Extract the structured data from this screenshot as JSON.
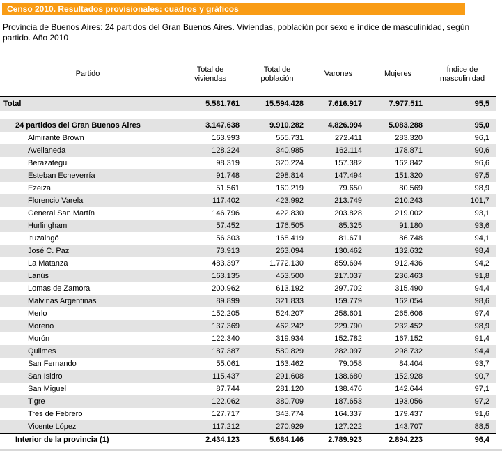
{
  "banner": {
    "title": "Censo 2010. Resultados provisionales: cuadros y gráficos",
    "bg_color": "#F99C15",
    "text_color": "#FFFFFF"
  },
  "subtitle": "Provincia de Buenos Aires: 24 partidos del Gran Buenos Aires. Viviendas, población por sexo e índice de masculinidad, según partido. Año 2010",
  "table": {
    "columns": [
      "Partido",
      "Total de viviendas",
      "Total de población",
      "Varones",
      "Mujeres",
      "Índice de masculinidad"
    ],
    "rows": [
      {
        "label": "Total",
        "level": "total",
        "values": [
          "5.581.761",
          "15.594.428",
          "7.616.917",
          "7.977.511",
          "95,5"
        ]
      },
      {
        "label": "24 partidos del Gran Buenos Aires",
        "level": "group",
        "values": [
          "3.147.638",
          "9.910.282",
          "4.826.994",
          "5.083.288",
          "95,0"
        ]
      },
      {
        "label": "Almirante Brown",
        "level": "item",
        "values": [
          "163.993",
          "555.731",
          "272.411",
          "283.320",
          "96,1"
        ]
      },
      {
        "label": "Avellaneda",
        "level": "item",
        "values": [
          "128.224",
          "340.985",
          "162.114",
          "178.871",
          "90,6"
        ]
      },
      {
        "label": "Berazategui",
        "level": "item",
        "values": [
          "98.319",
          "320.224",
          "157.382",
          "162.842",
          "96,6"
        ]
      },
      {
        "label": "Esteban Echeverría",
        "level": "item",
        "values": [
          "91.748",
          "298.814",
          "147.494",
          "151.320",
          "97,5"
        ]
      },
      {
        "label": "Ezeiza",
        "level": "item",
        "values": [
          "51.561",
          "160.219",
          "79.650",
          "80.569",
          "98,9"
        ]
      },
      {
        "label": "Florencio Varela",
        "level": "item",
        "values": [
          "117.402",
          "423.992",
          "213.749",
          "210.243",
          "101,7"
        ]
      },
      {
        "label": "General San Martín",
        "level": "item",
        "values": [
          "146.796",
          "422.830",
          "203.828",
          "219.002",
          "93,1"
        ]
      },
      {
        "label": "Hurlingham",
        "level": "item",
        "values": [
          "57.452",
          "176.505",
          "85.325",
          "91.180",
          "93,6"
        ]
      },
      {
        "label": "Ituzaingó",
        "level": "item",
        "values": [
          "56.303",
          "168.419",
          "81.671",
          "86.748",
          "94,1"
        ]
      },
      {
        "label": "José C. Paz",
        "level": "item",
        "values": [
          "73.913",
          "263.094",
          "130.462",
          "132.632",
          "98,4"
        ]
      },
      {
        "label": "La Matanza",
        "level": "item",
        "values": [
          "483.397",
          "1.772.130",
          "859.694",
          "912.436",
          "94,2"
        ]
      },
      {
        "label": "Lanús",
        "level": "item",
        "values": [
          "163.135",
          "453.500",
          "217.037",
          "236.463",
          "91,8"
        ]
      },
      {
        "label": "Lomas de Zamora",
        "level": "item",
        "values": [
          "200.962",
          "613.192",
          "297.702",
          "315.490",
          "94,4"
        ]
      },
      {
        "label": "Malvinas Argentinas",
        "level": "item",
        "values": [
          "89.899",
          "321.833",
          "159.779",
          "162.054",
          "98,6"
        ]
      },
      {
        "label": "Merlo",
        "level": "item",
        "values": [
          "152.205",
          "524.207",
          "258.601",
          "265.606",
          "97,4"
        ]
      },
      {
        "label": "Moreno",
        "level": "item",
        "values": [
          "137.369",
          "462.242",
          "229.790",
          "232.452",
          "98,9"
        ]
      },
      {
        "label": "Morón",
        "level": "item",
        "values": [
          "122.340",
          "319.934",
          "152.782",
          "167.152",
          "91,4"
        ]
      },
      {
        "label": "Quilmes",
        "level": "item",
        "values": [
          "187.387",
          "580.829",
          "282.097",
          "298.732",
          "94,4"
        ]
      },
      {
        "label": "San Fernando",
        "level": "item",
        "values": [
          "55.061",
          "163.462",
          "79.058",
          "84.404",
          "93,7"
        ]
      },
      {
        "label": "San Isidro",
        "level": "item",
        "values": [
          "115.437",
          "291.608",
          "138.680",
          "152.928",
          "90,7"
        ]
      },
      {
        "label": "San Miguel",
        "level": "item",
        "values": [
          "87.744",
          "281.120",
          "138.476",
          "142.644",
          "97,1"
        ]
      },
      {
        "label": "Tigre",
        "level": "item",
        "values": [
          "122.062",
          "380.709",
          "187.653",
          "193.056",
          "97,2"
        ]
      },
      {
        "label": "Tres de Febrero",
        "level": "item",
        "values": [
          "127.717",
          "343.774",
          "164.337",
          "179.437",
          "91,6"
        ]
      },
      {
        "label": "Vicente López",
        "level": "item",
        "values": [
          "117.212",
          "270.929",
          "127.222",
          "143.707",
          "88,5"
        ]
      },
      {
        "label": "Interior de la provincia (1)",
        "level": "interior",
        "values": [
          "2.434.123",
          "5.684.146",
          "2.789.923",
          "2.894.223",
          "96,4"
        ]
      }
    ],
    "zebra_gray": "#E3E3E3"
  }
}
